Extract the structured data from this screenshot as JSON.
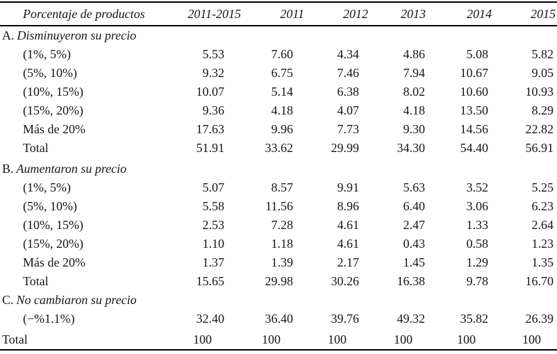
{
  "colors": {
    "text": "#151515",
    "rule": "#000000",
    "background": "#ffffff"
  },
  "table": {
    "header": {
      "label": "Porcentaje de productos",
      "columns": [
        "2011-2015",
        "2011",
        "2012",
        "2013",
        "2014",
        "2015"
      ]
    },
    "sections": [
      {
        "letter": "A.",
        "title": "Disminuyeron su precio",
        "rows": [
          {
            "label": "(1%, 5%)",
            "values": [
              "5.53",
              "7.60",
              "4.34",
              "4.86",
              "5.08",
              "5.82"
            ]
          },
          {
            "label": "(5%, 10%)",
            "values": [
              "9.32",
              "6.75",
              "7.46",
              "7.94",
              "10.67",
              "9.05"
            ]
          },
          {
            "label": "(10%, 15%)",
            "values": [
              "10.07",
              "5.14",
              "6.38",
              "8.02",
              "10.60",
              "10.93"
            ]
          },
          {
            "label": "(15%, 20%)",
            "values": [
              "9.36",
              "4.18",
              "4.07",
              "4.18",
              "13.50",
              "8.29"
            ]
          },
          {
            "label": "Más de 20%",
            "values": [
              "17.63",
              "9.96",
              "7.73",
              "9.30",
              "14.56",
              "22.82"
            ]
          },
          {
            "label": "Total",
            "values": [
              "51.91",
              "33.62",
              "29.99",
              "34.30",
              "54.40",
              "56.91"
            ]
          }
        ]
      },
      {
        "letter": "B.",
        "title": "Aumentaron su precio",
        "rows": [
          {
            "label": "(1%, 5%)",
            "values": [
              "5.07",
              "8.57",
              "9.91",
              "5.63",
              "3.52",
              "5.25"
            ]
          },
          {
            "label": "(5%, 10%)",
            "values": [
              "5.58",
              "11.56",
              "8.96",
              "6.40",
              "3.06",
              "6.23"
            ]
          },
          {
            "label": "(10%, 15%)",
            "values": [
              "2.53",
              "7.28",
              "4.61",
              "2.47",
              "1.33",
              "2.64"
            ]
          },
          {
            "label": "(15%, 20%)",
            "values": [
              "1.10",
              "1.18",
              "4.61",
              "0.43",
              "0.58",
              "1.23"
            ]
          },
          {
            "label": "Más de 20%",
            "values": [
              "1.37",
              "1.39",
              "2.17",
              "1.45",
              "1.29",
              "1.35"
            ]
          },
          {
            "label": "Total",
            "values": [
              "15.65",
              "29.98",
              "30.26",
              "16.38",
              "9.78",
              "16.70"
            ]
          }
        ]
      },
      {
        "letter": "C.",
        "title": "No cambiaron su precio",
        "rows": [
          {
            "label": "(−%1.1%)",
            "values": [
              "32.40",
              "36.40",
              "39.76",
              "49.32",
              "35.82",
              "26.39"
            ]
          }
        ]
      }
    ],
    "footer": {
      "label": "Total",
      "values": [
        "100",
        "100",
        "100",
        "100",
        "100",
        "100"
      ]
    }
  }
}
